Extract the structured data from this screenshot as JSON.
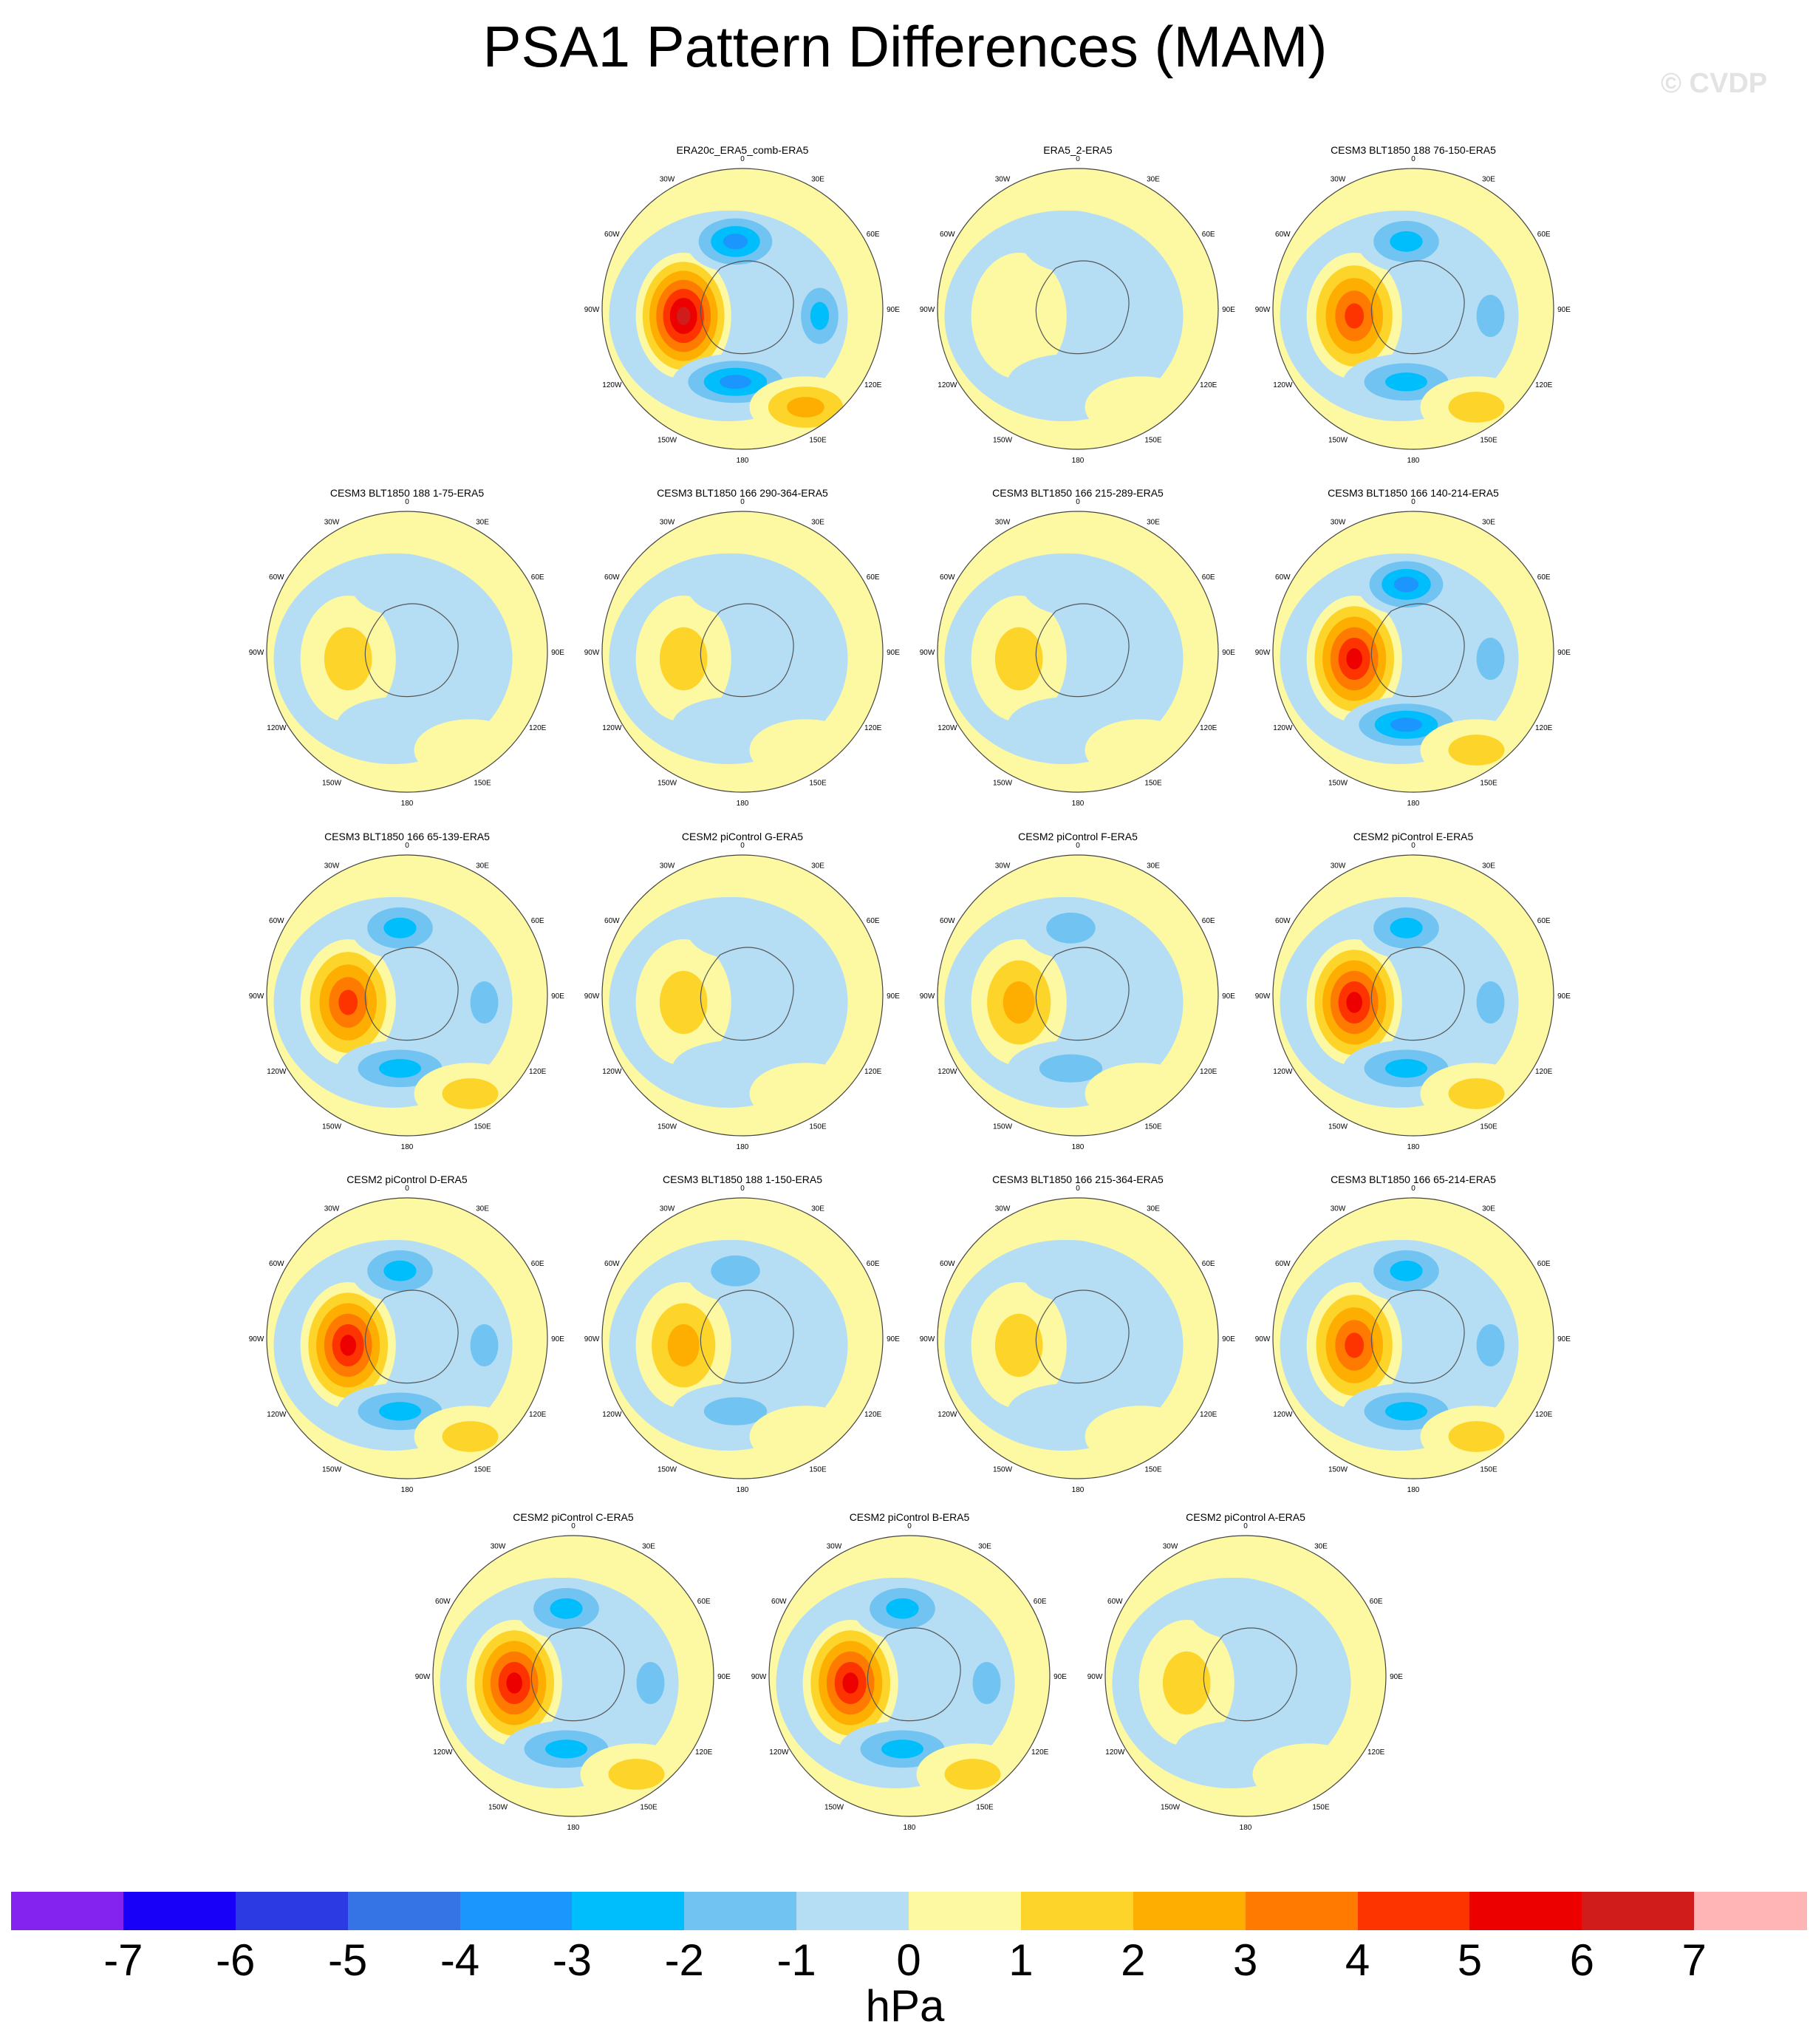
{
  "figure": {
    "title": "PSA1 Pattern Differences (MAM)",
    "watermark": "© CVDP"
  },
  "longitude_labels": [
    "0",
    "30E",
    "60E",
    "90E",
    "120E",
    "150E",
    "180",
    "150W",
    "120W",
    "90W",
    "60W",
    "30W"
  ],
  "panels": [
    {
      "title": "ERA20c_ERA5_comb-ERA5",
      "row": 0,
      "col": 1,
      "strength": 6.5
    },
    {
      "title": "ERA5_2-ERA5",
      "row": 0,
      "col": 2,
      "strength": 0.8
    },
    {
      "title": "CESM3 BLT1850 188 76-150-ERA5",
      "row": 0,
      "col": 3,
      "strength": 4.2
    },
    {
      "title": "CESM3 BLT1850 188 1-75-ERA5",
      "row": 1,
      "col": 0,
      "strength": 1.2
    },
    {
      "title": "CESM3 BLT1850 166 290-364-ERA5",
      "row": 1,
      "col": 1,
      "strength": 1.0
    },
    {
      "title": "CESM3 BLT1850 166 215-289-ERA5",
      "row": 1,
      "col": 2,
      "strength": 1.3
    },
    {
      "title": "CESM3 BLT1850 166 140-214-ERA5",
      "row": 1,
      "col": 3,
      "strength": 5.5
    },
    {
      "title": "CESM3 BLT1850 166 65-139-ERA5",
      "row": 2,
      "col": 0,
      "strength": 4.5
    },
    {
      "title": "CESM2 piControl G-ERA5",
      "row": 2,
      "col": 1,
      "strength": 1.6
    },
    {
      "title": "CESM2 piControl F-ERA5",
      "row": 2,
      "col": 2,
      "strength": 2.0
    },
    {
      "title": "CESM2 piControl E-ERA5",
      "row": 2,
      "col": 3,
      "strength": 5.0
    },
    {
      "title": "CESM2 piControl D-ERA5",
      "row": 3,
      "col": 0,
      "strength": 5.2
    },
    {
      "title": "CESM3 BLT1850 188 1-150-ERA5",
      "row": 3,
      "col": 1,
      "strength": 2.7
    },
    {
      "title": "CESM3 BLT1850 166 215-364-ERA5",
      "row": 3,
      "col": 2,
      "strength": 1.1
    },
    {
      "title": "CESM3 BLT1850 166 65-214-ERA5",
      "row": 3,
      "col": 3,
      "strength": 4.8
    },
    {
      "title": "CESM2 piControl C-ERA5",
      "row": 4,
      "col": 0,
      "strength": 5.3
    },
    {
      "title": "CESM2 piControl B-ERA5",
      "row": 4,
      "col": 1,
      "strength": 5.0
    },
    {
      "title": "CESM2 piControl A-ERA5",
      "row": 4,
      "col": 2,
      "strength": 1.1
    }
  ],
  "colorbar": {
    "unit": "hPa",
    "labels": [
      "-7",
      "-6",
      "-5",
      "-4",
      "-3",
      "-2",
      "-1",
      "0",
      "1",
      "2",
      "3",
      "4",
      "5",
      "6",
      "7"
    ],
    "colors": [
      "#8422f0",
      "#1800f8",
      "#2c3ae4",
      "#3574e4",
      "#1a96fc",
      "#00bdfb",
      "#71c4f1",
      "#b5def5",
      "#fdf8a2",
      "#fdd52a",
      "#fdae00",
      "#fe7a00",
      "#fd3300",
      "#ed0000",
      "#d11c1c",
      "#ffb5b5"
    ]
  }
}
